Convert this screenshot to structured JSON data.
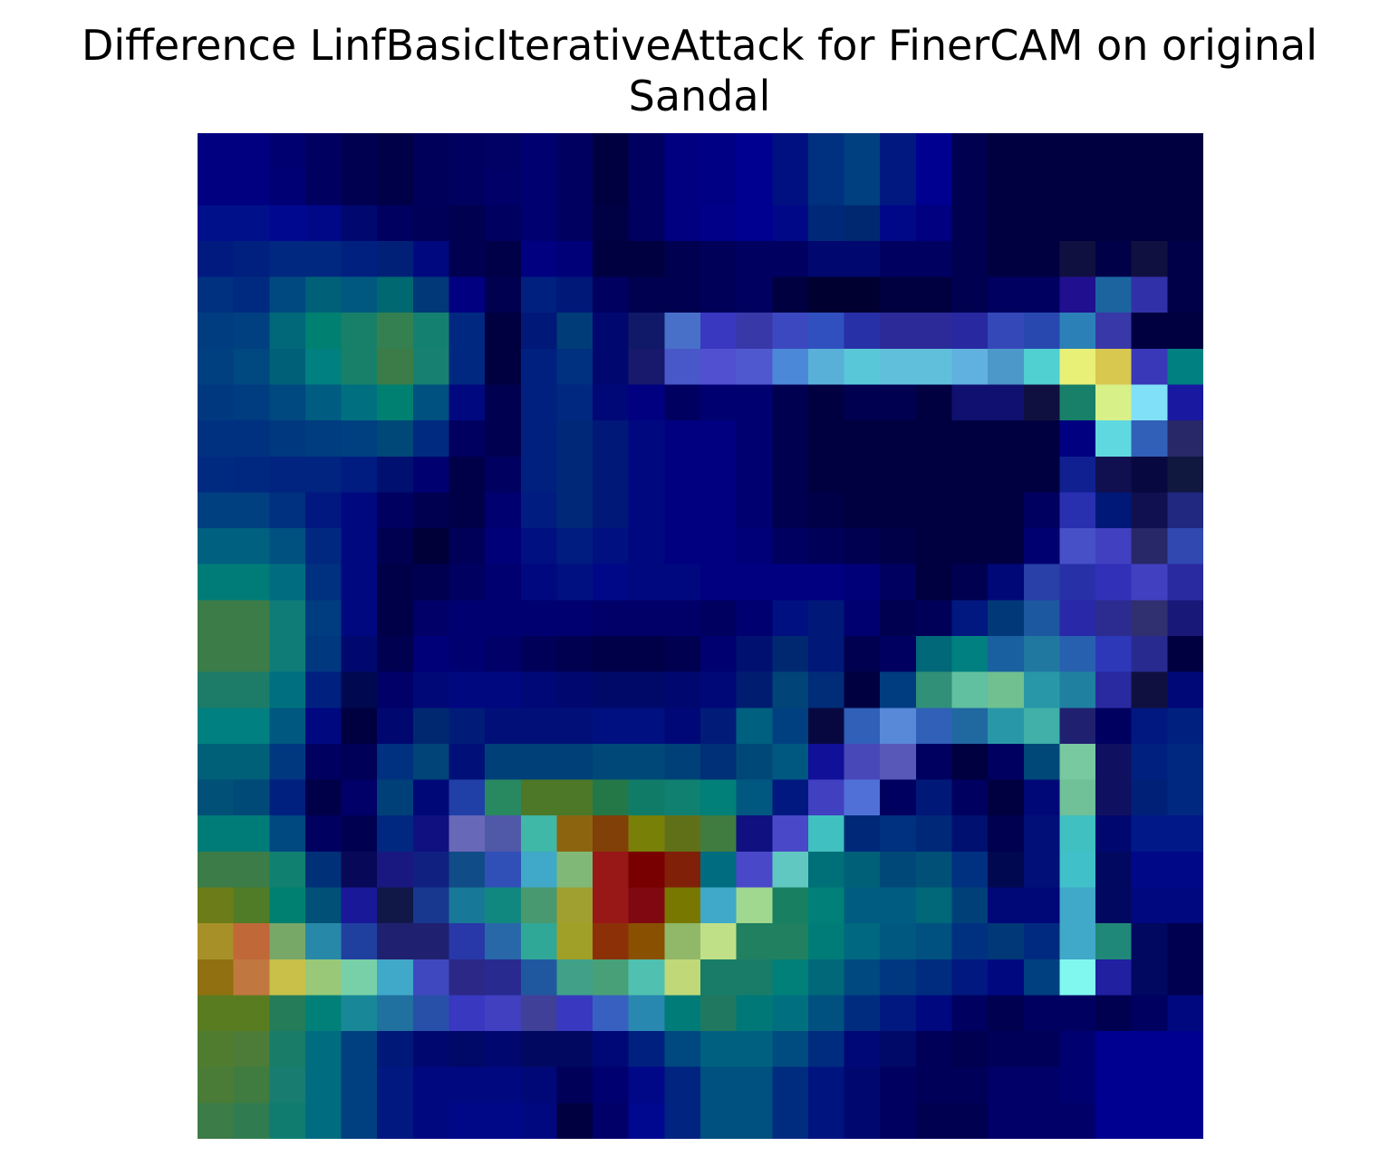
{
  "chart_data": {
    "type": "heatmap",
    "title": "Difference LinfBasicIterativeAttack for FinerCAM on original Sandal",
    "title_lines": [
      "Difference LinfBasicIterativeAttack for FinerCAM on original",
      "Sandal"
    ],
    "xlabel": "",
    "ylabel": "",
    "axes_visible": false,
    "grid": false,
    "colormap": "jet (overlaid on dark image)",
    "rows": 28,
    "cols": 28,
    "cells": [
      [
        "#000080",
        "#000080",
        "#000070",
        "#000060",
        "#000050",
        "#000048",
        "#00005a",
        "#000060",
        "#000065",
        "#000070",
        "#000060",
        "#000040",
        "#000060",
        "#000080",
        "#000085",
        "#000090",
        "#001080",
        "#003080",
        "#004080",
        "#001880",
        "#000090",
        "#000050",
        "#000040",
        "#000040",
        "#000040",
        "#000040",
        "#000040",
        "#000040"
      ],
      [
        "#000080",
        "#000080",
        "#000075",
        "#000060",
        "#000050",
        "#000048",
        "#00005a",
        "#000060",
        "#000068",
        "#000070",
        "#000060",
        "#000040",
        "#000060",
        "#000080",
        "#000085",
        "#000090",
        "#001080",
        "#003080",
        "#004080",
        "#001880",
        "#000090",
        "#000050",
        "#000040",
        "#000040",
        "#000040",
        "#000040",
        "#000040",
        "#000040"
      ],
      [
        "#00108a",
        "#00108a",
        "#000890",
        "#000888",
        "#000870",
        "#000060",
        "#000058",
        "#000050",
        "#000060",
        "#000070",
        "#000060",
        "#000045",
        "#000060",
        "#000080",
        "#000088",
        "#000090",
        "#000888",
        "#002878",
        "#002870",
        "#000888",
        "#000080",
        "#000050",
        "#000040",
        "#000040",
        "#000040",
        "#000040",
        "#000040",
        "#000040"
      ],
      [
        "#001a80",
        "#002080",
        "#002880",
        "#002880",
        "#002080",
        "#002078",
        "#000880",
        "#000050",
        "#000048",
        "#000080",
        "#000078",
        "#000040",
        "#000040",
        "#000050",
        "#000058",
        "#000060",
        "#000060",
        "#000870",
        "#000870",
        "#000060",
        "#000060",
        "#000050",
        "#000040",
        "#000040",
        "#101040",
        "#000048",
        "#101040",
        "#000048"
      ],
      [
        "#003080",
        "#002a80",
        "#004880",
        "#006078",
        "#005880",
        "#006870",
        "#003878",
        "#000080",
        "#000050",
        "#002080",
        "#001878",
        "#000060",
        "#000050",
        "#000050",
        "#000058",
        "#000060",
        "#000040",
        "#000030",
        "#000030",
        "#000040",
        "#000040",
        "#000050",
        "#000060",
        "#000060",
        "#201090",
        "#1c64a0",
        "#3030a8",
        "#000048"
      ],
      [
        "#003c80",
        "#004080",
        "#006878",
        "#008070",
        "#188068",
        "#348050",
        "#148070",
        "#002880",
        "#000040",
        "#001878",
        "#003c78",
        "#000870",
        "#101868",
        "#4870c8",
        "#3838c0",
        "#3838a8",
        "#3c48c0",
        "#3050c0",
        "#2830a8",
        "#2c2a98",
        "#2c2a98",
        "#2828a0",
        "#3448b8",
        "#2848b0",
        "#2c80b8",
        "#3838a8",
        "#000040",
        "#000040"
      ],
      [
        "#004080",
        "#004880",
        "#006078",
        "#008080",
        "#188068",
        "#3c7c48",
        "#188070",
        "#002880",
        "#000040",
        "#002080",
        "#003080",
        "#000870",
        "#18186c",
        "#4858c8",
        "#5050d0",
        "#5058d0",
        "#4c88d8",
        "#58b0d8",
        "#58c8d8",
        "#60c0dc",
        "#60c0dc",
        "#60b0e0",
        "#4c98c8",
        "#50d0d0",
        "#e8f078",
        "#d8c850",
        "#3838b8",
        "#008080"
      ],
      [
        "#003880",
        "#003c80",
        "#004880",
        "#005c80",
        "#007080",
        "#008070",
        "#005080",
        "#000880",
        "#000050",
        "#002080",
        "#002880",
        "#000878",
        "#000080",
        "#000060",
        "#000070",
        "#000070",
        "#000050",
        "#000040",
        "#000050",
        "#000050",
        "#000040",
        "#101070",
        "#101070",
        "#101040",
        "#188068",
        "#d8f088",
        "#80e0f8",
        "#1818a0"
      ],
      [
        "#003080",
        "#003080",
        "#003880",
        "#003c80",
        "#004080",
        "#004878",
        "#002a80",
        "#000060",
        "#000050",
        "#002080",
        "#002878",
        "#001878",
        "#000880",
        "#000080",
        "#000080",
        "#000070",
        "#000050",
        "#000040",
        "#000040",
        "#000040",
        "#000040",
        "#000040",
        "#000040",
        "#000040",
        "#000080",
        "#60d8e0",
        "#3060b8",
        "#282868"
      ],
      [
        "#002a80",
        "#002880",
        "#002480",
        "#002480",
        "#001c80",
        "#001070",
        "#000070",
        "#000048",
        "#000060",
        "#002080",
        "#002878",
        "#001878",
        "#000880",
        "#000080",
        "#000080",
        "#000070",
        "#000050",
        "#000040",
        "#000040",
        "#000040",
        "#000040",
        "#000040",
        "#000040",
        "#000040",
        "#102090",
        "#101050",
        "#080840",
        "#101840"
      ],
      [
        "#004080",
        "#004080",
        "#003080",
        "#001880",
        "#000880",
        "#000060",
        "#000050",
        "#000048",
        "#000070",
        "#001c80",
        "#002878",
        "#001878",
        "#000880",
        "#000080",
        "#000080",
        "#000070",
        "#000050",
        "#000048",
        "#000040",
        "#000040",
        "#000040",
        "#000040",
        "#000040",
        "#000060",
        "#2830b0",
        "#001878",
        "#101050",
        "#202880"
      ],
      [
        "#006080",
        "#006080",
        "#005080",
        "#002880",
        "#000880",
        "#000050",
        "#000038",
        "#000058",
        "#000078",
        "#001080",
        "#001c80",
        "#001080",
        "#000880",
        "#000080",
        "#000080",
        "#000078",
        "#000060",
        "#000058",
        "#000050",
        "#000048",
        "#000040",
        "#000040",
        "#000040",
        "#000070",
        "#4850c8",
        "#4040c0",
        "#282868",
        "#3048b0"
      ],
      [
        "#007c78",
        "#007c78",
        "#006c80",
        "#003080",
        "#000880",
        "#000048",
        "#000050",
        "#000060",
        "#000070",
        "#000880",
        "#001080",
        "#000888",
        "#000880",
        "#000880",
        "#000080",
        "#000080",
        "#000080",
        "#000080",
        "#000078",
        "#000060",
        "#000040",
        "#000050",
        "#000878",
        "#2840a8",
        "#2830a8",
        "#3030b8",
        "#4040c0",
        "#2a2aa0"
      ],
      [
        "#3c7c48",
        "#3c7c48",
        "#107c78",
        "#003c80",
        "#000880",
        "#000048",
        "#000068",
        "#000070",
        "#000070",
        "#000070",
        "#000070",
        "#000068",
        "#000068",
        "#000068",
        "#000060",
        "#000070",
        "#001080",
        "#001878",
        "#000070",
        "#000050",
        "#000058",
        "#001880",
        "#003878",
        "#1c58a0",
        "#2828a8",
        "#2c2c90",
        "#303070",
        "#181878"
      ],
      [
        "#3c7c48",
        "#3c7c48",
        "#107c78",
        "#003880",
        "#000870",
        "#000050",
        "#000078",
        "#000070",
        "#000068",
        "#000058",
        "#000050",
        "#000048",
        "#000048",
        "#000050",
        "#000070",
        "#001070",
        "#002870",
        "#001878",
        "#000050",
        "#000060",
        "#006878",
        "#008080",
        "#1860a0",
        "#2078a0",
        "#2860b0",
        "#2c38b8",
        "#282a90",
        "#000040"
      ],
      [
        "#1c7c68",
        "#1c7c68",
        "#007080",
        "#002080",
        "#000850",
        "#000068",
        "#000878",
        "#000880",
        "#000880",
        "#000878",
        "#000870",
        "#000868",
        "#000868",
        "#000870",
        "#000878",
        "#001c70",
        "#004478",
        "#002c78",
        "#000040",
        "#003c80",
        "#309078",
        "#60c0a0",
        "#70c090",
        "#2898a8",
        "#2080a0",
        "#2a2aa0",
        "#101040",
        "#000878"
      ],
      [
        "#008080",
        "#008080",
        "#005880",
        "#000880",
        "#000040",
        "#000870",
        "#002870",
        "#001c78",
        "#001078",
        "#001078",
        "#001078",
        "#001080",
        "#001080",
        "#000878",
        "#001c78",
        "#006080",
        "#004080",
        "#080840",
        "#3060b8",
        "#5888d8",
        "#3060b8",
        "#2068a0",
        "#2898a8",
        "#40b0a8",
        "#202070",
        "#000060",
        "#001880",
        "#002080"
      ],
      [
        "#006078",
        "#006078",
        "#003880",
        "#000060",
        "#000058",
        "#003080",
        "#004478",
        "#001078",
        "#004078",
        "#004078",
        "#004078",
        "#004878",
        "#004878",
        "#004078",
        "#003078",
        "#004878",
        "#005880",
        "#101098",
        "#4848b8",
        "#5858b8",
        "#000060",
        "#000040",
        "#000060",
        "#004878",
        "#78c8a0",
        "#101060",
        "#002080",
        "#002880"
      ],
      [
        "#005078",
        "#004a78",
        "#002080",
        "#000048",
        "#000068",
        "#004078",
        "#000878",
        "#2040a8",
        "#288860",
        "#4c7828",
        "#4c7828",
        "#247848",
        "#107c68",
        "#108070",
        "#008078",
        "#005880",
        "#001880",
        "#4040c0",
        "#5070d8",
        "#000060",
        "#001878",
        "#000060",
        "#000040",
        "#000878",
        "#70c098",
        "#101060",
        "#002078",
        "#002880"
      ],
      [
        "#007c78",
        "#007c78",
        "#004880",
        "#000060",
        "#000050",
        "#002880",
        "#101080",
        "#6868b8",
        "#5058a8",
        "#40b8a8",
        "#8c6410",
        "#804008",
        "#788008",
        "#607018",
        "#407c40",
        "#101080",
        "#4848c8",
        "#40c0c0",
        "#002878",
        "#003080",
        "#002878",
        "#001070",
        "#000050",
        "#001078",
        "#40c0c0",
        "#000870",
        "#001888",
        "#001888"
      ],
      [
        "#3c7c48",
        "#3c7c48",
        "#108070",
        "#003078",
        "#080858",
        "#181880",
        "#102080",
        "#104c88",
        "#3050b8",
        "#40a8c8",
        "#80b878",
        "#981818",
        "#780000",
        "#802008",
        "#006c80",
        "#4848c8",
        "#60c8c0",
        "#007078",
        "#006078",
        "#004878",
        "#005078",
        "#003080",
        "#000850",
        "#001078",
        "#40c0c8",
        "#000860",
        "#000888",
        "#000888"
      ],
      [
        "#6c7c18",
        "#507c28",
        "#008070",
        "#005078",
        "#181898",
        "#101848",
        "#183890",
        "#187898",
        "#108880",
        "#489870",
        "#a0a030",
        "#981818",
        "#800810",
        "#787800",
        "#40a8c8",
        "#a0d890",
        "#188060",
        "#008078",
        "#005c80",
        "#005c80",
        "#006878",
        "#004078",
        "#000878",
        "#000878",
        "#40a8c8",
        "#000860",
        "#000880",
        "#000880"
      ],
      [
        "#a89028",
        "#c06838",
        "#78a868",
        "#2888a8",
        "#2040a0",
        "#202070",
        "#202070",
        "#2838a8",
        "#2868a8",
        "#30a898",
        "#a0a028",
        "#8c3008",
        "#885000",
        "#90b868",
        "#c0e088",
        "#208060",
        "#208060",
        "#007c78",
        "#006880",
        "#005880",
        "#005080",
        "#003080",
        "#003878",
        "#002a80",
        "#40a8c8",
        "#208878",
        "#000860",
        "#000050"
      ],
      [
        "#907010",
        "#c07840",
        "#c8c048",
        "#98c878",
        "#78d0a8",
        "#40a8c8",
        "#4048c0",
        "#2c2888",
        "#282a90",
        "#2058a0",
        "#40a088",
        "#48a078",
        "#50c0b0",
        "#c0d878",
        "#187c68",
        "#187c68",
        "#008078",
        "#006878",
        "#004880",
        "#003880",
        "#002c80",
        "#001880",
        "#000880",
        "#004080",
        "#80f8f0",
        "#2020a0",
        "#000860",
        "#000050"
      ],
      [
        "#5a7c20",
        "#5a7c20",
        "#247c58",
        "#008078",
        "#188898",
        "#2070a0",
        "#2850a8",
        "#3838c0",
        "#4040c0",
        "#404098",
        "#3838c0",
        "#3860c0",
        "#2888b0",
        "#007c78",
        "#207860",
        "#007878",
        "#007080",
        "#005080",
        "#002c80",
        "#001880",
        "#000880",
        "#000060",
        "#000050",
        "#000060",
        "#000060",
        "#000050",
        "#000060",
        "#000880"
      ],
      [
        "#507c30",
        "#4c7c38",
        "#187c68",
        "#006c80",
        "#004080",
        "#001878",
        "#000870",
        "#000868",
        "#000870",
        "#000860",
        "#000860",
        "#000878",
        "#002080",
        "#004880",
        "#006080",
        "#006080",
        "#004c80",
        "#002c80",
        "#000878",
        "#000868",
        "#000058",
        "#000050",
        "#000058",
        "#000058",
        "#000070",
        "#000090",
        "#000090",
        "#000090"
      ],
      [
        "#4a7c38",
        "#407c40",
        "#187c70",
        "#006c80",
        "#004080",
        "#001880",
        "#000880",
        "#000880",
        "#000880",
        "#000878",
        "#000058",
        "#000070",
        "#000888",
        "#002480",
        "#005080",
        "#005080",
        "#002c80",
        "#001480",
        "#000870",
        "#000060",
        "#000058",
        "#000058",
        "#000068",
        "#000068",
        "#000070",
        "#000090",
        "#000090",
        "#000090"
      ],
      [
        "#3c7c48",
        "#307c50",
        "#107c70",
        "#006c80",
        "#004080",
        "#001880",
        "#000880",
        "#000888",
        "#000888",
        "#000880",
        "#000040",
        "#000068",
        "#000890",
        "#002480",
        "#005080",
        "#005080",
        "#002c80",
        "#001480",
        "#000870",
        "#000060",
        "#000050",
        "#000050",
        "#000068",
        "#000068",
        "#000068",
        "#000090",
        "#000090",
        "#000090"
      ]
    ]
  }
}
